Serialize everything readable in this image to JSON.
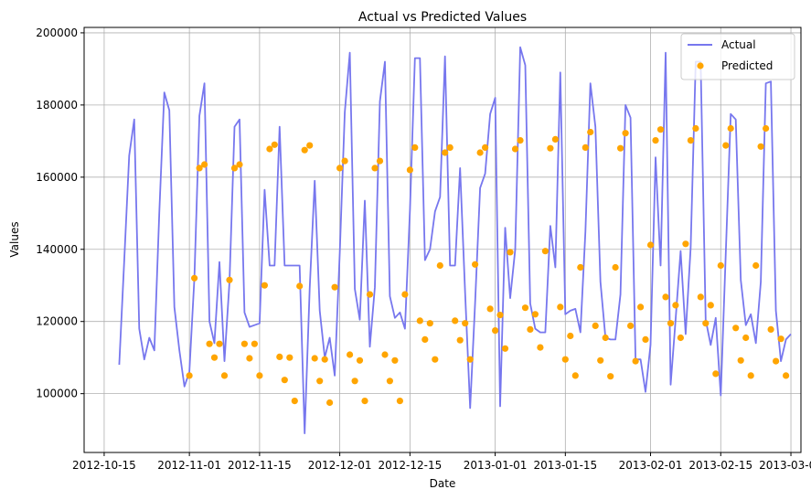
{
  "chart_data": {
    "type": "line",
    "title": "Actual vs Predicted Values",
    "xlabel": "Date",
    "ylabel": "Values",
    "x_axis_type": "date",
    "xlim": [
      "2012-10-11",
      "2013-03-03"
    ],
    "ylim": [
      83700,
      201500
    ],
    "x_ticks": [
      "2012-10-15",
      "2012-11-01",
      "2012-11-15",
      "2012-12-01",
      "2012-12-15",
      "2013-01-01",
      "2013-01-15",
      "2013-02-01",
      "2013-02-15",
      "2013-03-01"
    ],
    "y_ticks": [
      100000,
      120000,
      140000,
      160000,
      180000,
      200000
    ],
    "grid": true,
    "legend_position": "top-right",
    "colors": {
      "actual": "#7777ee",
      "predicted": "#ffa500",
      "grid": "#b0b0b0"
    },
    "series": [
      {
        "name": "Actual",
        "type": "line",
        "points": [
          [
            "2012-10-18",
            108000
          ],
          [
            "2012-10-19",
            137000
          ],
          [
            "2012-10-20",
            166000
          ],
          [
            "2012-10-21",
            176000
          ],
          [
            "2012-10-22",
            118000
          ],
          [
            "2012-10-23",
            109500
          ],
          [
            "2012-10-24",
            115500
          ],
          [
            "2012-10-25",
            112000
          ],
          [
            "2012-10-26",
            150000
          ],
          [
            "2012-10-27",
            183500
          ],
          [
            "2012-10-28",
            178500
          ],
          [
            "2012-10-29",
            124000
          ],
          [
            "2012-10-30",
            112000
          ],
          [
            "2012-10-31",
            102000
          ],
          [
            "2012-11-01",
            106000
          ],
          [
            "2012-11-02",
            132000
          ],
          [
            "2012-11-03",
            177000
          ],
          [
            "2012-11-04",
            186000
          ],
          [
            "2012-11-05",
            120000
          ],
          [
            "2012-11-06",
            114000
          ],
          [
            "2012-11-07",
            136500
          ],
          [
            "2012-11-08",
            109000
          ],
          [
            "2012-11-09",
            131000
          ],
          [
            "2012-11-10",
            174000
          ],
          [
            "2012-11-11",
            176000
          ],
          [
            "2012-11-12",
            122500
          ],
          [
            "2012-11-13",
            118500
          ],
          [
            "2012-11-14",
            119000
          ],
          [
            "2012-11-15",
            119500
          ],
          [
            "2012-11-16",
            156500
          ],
          [
            "2012-11-17",
            135500
          ],
          [
            "2012-11-18",
            135500
          ],
          [
            "2012-11-19",
            174000
          ],
          [
            "2012-11-20",
            135500
          ],
          [
            "2012-11-21",
            135500
          ],
          [
            "2012-11-22",
            135500
          ],
          [
            "2012-11-23",
            135500
          ],
          [
            "2012-11-24",
            89000
          ],
          [
            "2012-11-25",
            129000
          ],
          [
            "2012-11-26",
            159000
          ],
          [
            "2012-11-27",
            123000
          ],
          [
            "2012-11-28",
            110000
          ],
          [
            "2012-11-29",
            115500
          ],
          [
            "2012-11-30",
            105000
          ],
          [
            "2012-12-01",
            139000
          ],
          [
            "2012-12-02",
            178000
          ],
          [
            "2012-12-03",
            194500
          ],
          [
            "2012-12-04",
            129000
          ],
          [
            "2012-12-05",
            120500
          ],
          [
            "2012-12-06",
            153500
          ],
          [
            "2012-12-07",
            113000
          ],
          [
            "2012-12-08",
            129500
          ],
          [
            "2012-12-09",
            181000
          ],
          [
            "2012-12-10",
            192000
          ],
          [
            "2012-12-11",
            127000
          ],
          [
            "2012-12-12",
            121000
          ],
          [
            "2012-12-13",
            122500
          ],
          [
            "2012-12-14",
            118000
          ],
          [
            "2012-12-15",
            151000
          ],
          [
            "2012-12-16",
            193000
          ],
          [
            "2012-12-17",
            193000
          ],
          [
            "2012-12-18",
            137000
          ],
          [
            "2012-12-19",
            140000
          ],
          [
            "2012-12-20",
            150500
          ],
          [
            "2012-12-21",
            154500
          ],
          [
            "2012-12-22",
            193500
          ],
          [
            "2012-12-23",
            135500
          ],
          [
            "2012-12-24",
            135500
          ],
          [
            "2012-12-25",
            162500
          ],
          [
            "2012-12-26",
            128000
          ],
          [
            "2012-12-27",
            96000
          ],
          [
            "2012-12-28",
            125000
          ],
          [
            "2012-12-29",
            157000
          ],
          [
            "2012-12-30",
            161000
          ],
          [
            "2012-12-31",
            177500
          ],
          [
            "2013-01-01",
            182000
          ],
          [
            "2013-01-02",
            96500
          ],
          [
            "2013-01-03",
            146000
          ],
          [
            "2013-01-04",
            126500
          ],
          [
            "2013-01-05",
            140000
          ],
          [
            "2013-01-06",
            196000
          ],
          [
            "2013-01-07",
            191000
          ],
          [
            "2013-01-08",
            125000
          ],
          [
            "2013-01-09",
            118000
          ],
          [
            "2013-01-10",
            117000
          ],
          [
            "2013-01-11",
            117000
          ],
          [
            "2013-01-12",
            146500
          ],
          [
            "2013-01-13",
            135000
          ],
          [
            "2013-01-14",
            189000
          ],
          [
            "2013-01-15",
            122000
          ],
          [
            "2013-01-16",
            123000
          ],
          [
            "2013-01-17",
            123500
          ],
          [
            "2013-01-18",
            117000
          ],
          [
            "2013-01-19",
            145000
          ],
          [
            "2013-01-20",
            186000
          ],
          [
            "2013-01-21",
            174000
          ],
          [
            "2013-01-22",
            131000
          ],
          [
            "2013-01-23",
            115500
          ],
          [
            "2013-01-24",
            115000
          ],
          [
            "2013-01-25",
            115000
          ],
          [
            "2013-01-26",
            127500
          ],
          [
            "2013-01-27",
            180000
          ],
          [
            "2013-01-28",
            176500
          ],
          [
            "2013-01-29",
            109500
          ],
          [
            "2013-01-30",
            109500
          ],
          [
            "2013-01-31",
            100500
          ],
          [
            "2013-02-01",
            113500
          ],
          [
            "2013-02-02",
            165500
          ],
          [
            "2013-02-03",
            135500
          ],
          [
            "2013-02-04",
            194500
          ],
          [
            "2013-02-05",
            102500
          ],
          [
            "2013-02-06",
            120500
          ],
          [
            "2013-02-07",
            139500
          ],
          [
            "2013-02-08",
            116500
          ],
          [
            "2013-02-09",
            140500
          ],
          [
            "2013-02-10",
            192000
          ],
          [
            "2013-02-11",
            192000
          ],
          [
            "2013-02-12",
            120500
          ],
          [
            "2013-02-13",
            113500
          ],
          [
            "2013-02-14",
            121000
          ],
          [
            "2013-02-15",
            99500
          ],
          [
            "2013-02-16",
            139000
          ],
          [
            "2013-02-17",
            177500
          ],
          [
            "2013-02-18",
            176000
          ],
          [
            "2013-02-19",
            131500
          ],
          [
            "2013-02-20",
            119000
          ],
          [
            "2013-02-21",
            122000
          ],
          [
            "2013-02-22",
            114000
          ],
          [
            "2013-02-23",
            131000
          ],
          [
            "2013-02-24",
            186000
          ],
          [
            "2013-02-25",
            186500
          ],
          [
            "2013-02-26",
            123000
          ],
          [
            "2013-02-27",
            109000
          ],
          [
            "2013-02-28",
            115000
          ],
          [
            "2013-03-01",
            116500
          ]
        ]
      },
      {
        "name": "Predicted",
        "type": "scatter",
        "points": [
          [
            "2012-11-01",
            105000
          ],
          [
            "2012-11-02",
            132000
          ],
          [
            "2012-11-03",
            162500
          ],
          [
            "2012-11-04",
            163500
          ],
          [
            "2012-11-05",
            113800
          ],
          [
            "2012-11-06",
            110000
          ],
          [
            "2012-11-07",
            113800
          ],
          [
            "2012-11-08",
            105000
          ],
          [
            "2012-11-09",
            131500
          ],
          [
            "2012-11-10",
            162500
          ],
          [
            "2012-11-11",
            163500
          ],
          [
            "2012-11-12",
            113800
          ],
          [
            "2012-11-13",
            109800
          ],
          [
            "2012-11-14",
            113800
          ],
          [
            "2012-11-15",
            105000
          ],
          [
            "2012-11-16",
            130000
          ],
          [
            "2012-11-17",
            167800
          ],
          [
            "2012-11-18",
            169000
          ],
          [
            "2012-11-19",
            110200
          ],
          [
            "2012-11-20",
            103800
          ],
          [
            "2012-11-21",
            110000
          ],
          [
            "2012-11-22",
            98000
          ],
          [
            "2012-11-23",
            129800
          ],
          [
            "2012-11-24",
            167500
          ],
          [
            "2012-11-25",
            168800
          ],
          [
            "2012-11-26",
            109800
          ],
          [
            "2012-11-27",
            103500
          ],
          [
            "2012-11-28",
            109500
          ],
          [
            "2012-11-29",
            97500
          ],
          [
            "2012-11-30",
            129500
          ],
          [
            "2012-12-01",
            162500
          ],
          [
            "2012-12-02",
            164500
          ],
          [
            "2012-12-03",
            110800
          ],
          [
            "2012-12-04",
            103500
          ],
          [
            "2012-12-05",
            109200
          ],
          [
            "2012-12-06",
            98000
          ],
          [
            "2012-12-07",
            127500
          ],
          [
            "2012-12-08",
            162500
          ],
          [
            "2012-12-09",
            164500
          ],
          [
            "2012-12-10",
            110800
          ],
          [
            "2012-12-11",
            103500
          ],
          [
            "2012-12-12",
            109200
          ],
          [
            "2012-12-13",
            98000
          ],
          [
            "2012-12-14",
            127500
          ],
          [
            "2012-12-15",
            162000
          ],
          [
            "2012-12-16",
            168200
          ],
          [
            "2012-12-17",
            120200
          ],
          [
            "2012-12-18",
            115000
          ],
          [
            "2012-12-19",
            119500
          ],
          [
            "2012-12-20",
            109500
          ],
          [
            "2012-12-21",
            135500
          ],
          [
            "2012-12-22",
            166800
          ],
          [
            "2012-12-23",
            168200
          ],
          [
            "2012-12-24",
            120200
          ],
          [
            "2012-12-25",
            114800
          ],
          [
            "2012-12-26",
            119500
          ],
          [
            "2012-12-27",
            109500
          ],
          [
            "2012-12-28",
            135800
          ],
          [
            "2012-12-29",
            166800
          ],
          [
            "2012-12-30",
            168200
          ],
          [
            "2012-12-31",
            123500
          ],
          [
            "2013-01-01",
            117500
          ],
          [
            "2013-01-02",
            121800
          ],
          [
            "2013-01-03",
            112500
          ],
          [
            "2013-01-04",
            139200
          ],
          [
            "2013-01-05",
            167800
          ],
          [
            "2013-01-06",
            170200
          ],
          [
            "2013-01-07",
            123800
          ],
          [
            "2013-01-08",
            117800
          ],
          [
            "2013-01-09",
            122000
          ],
          [
            "2013-01-10",
            112800
          ],
          [
            "2013-01-11",
            139500
          ],
          [
            "2013-01-12",
            168000
          ],
          [
            "2013-01-13",
            170500
          ],
          [
            "2013-01-14",
            124000
          ],
          [
            "2013-01-15",
            109500
          ],
          [
            "2013-01-16",
            116000
          ],
          [
            "2013-01-17",
            105000
          ],
          [
            "2013-01-18",
            135000
          ],
          [
            "2013-01-19",
            168200
          ],
          [
            "2013-01-20",
            172500
          ],
          [
            "2013-01-21",
            118800
          ],
          [
            "2013-01-22",
            109200
          ],
          [
            "2013-01-23",
            115500
          ],
          [
            "2013-01-24",
            104800
          ],
          [
            "2013-01-25",
            135000
          ],
          [
            "2013-01-26",
            168000
          ],
          [
            "2013-01-27",
            172200
          ],
          [
            "2013-01-28",
            118800
          ],
          [
            "2013-01-29",
            109000
          ],
          [
            "2013-01-30",
            124000
          ],
          [
            "2013-01-31",
            115000
          ],
          [
            "2013-02-01",
            141200
          ],
          [
            "2013-02-02",
            170200
          ],
          [
            "2013-02-03",
            173200
          ],
          [
            "2013-02-04",
            126800
          ],
          [
            "2013-02-05",
            119500
          ],
          [
            "2013-02-06",
            124500
          ],
          [
            "2013-02-07",
            115500
          ],
          [
            "2013-02-08",
            141500
          ],
          [
            "2013-02-09",
            170200
          ],
          [
            "2013-02-10",
            173500
          ],
          [
            "2013-02-11",
            126800
          ],
          [
            "2013-02-12",
            119500
          ],
          [
            "2013-02-13",
            124500
          ],
          [
            "2013-02-14",
            105500
          ],
          [
            "2013-02-15",
            135500
          ],
          [
            "2013-02-16",
            168800
          ],
          [
            "2013-02-17",
            173500
          ],
          [
            "2013-02-18",
            118200
          ],
          [
            "2013-02-19",
            109200
          ],
          [
            "2013-02-20",
            115500
          ],
          [
            "2013-02-21",
            105000
          ],
          [
            "2013-02-22",
            135500
          ],
          [
            "2013-02-23",
            168500
          ],
          [
            "2013-02-24",
            173500
          ],
          [
            "2013-02-25",
            117800
          ],
          [
            "2013-02-26",
            109000
          ],
          [
            "2013-02-27",
            115200
          ],
          [
            "2013-02-28",
            105000
          ]
        ]
      }
    ]
  }
}
